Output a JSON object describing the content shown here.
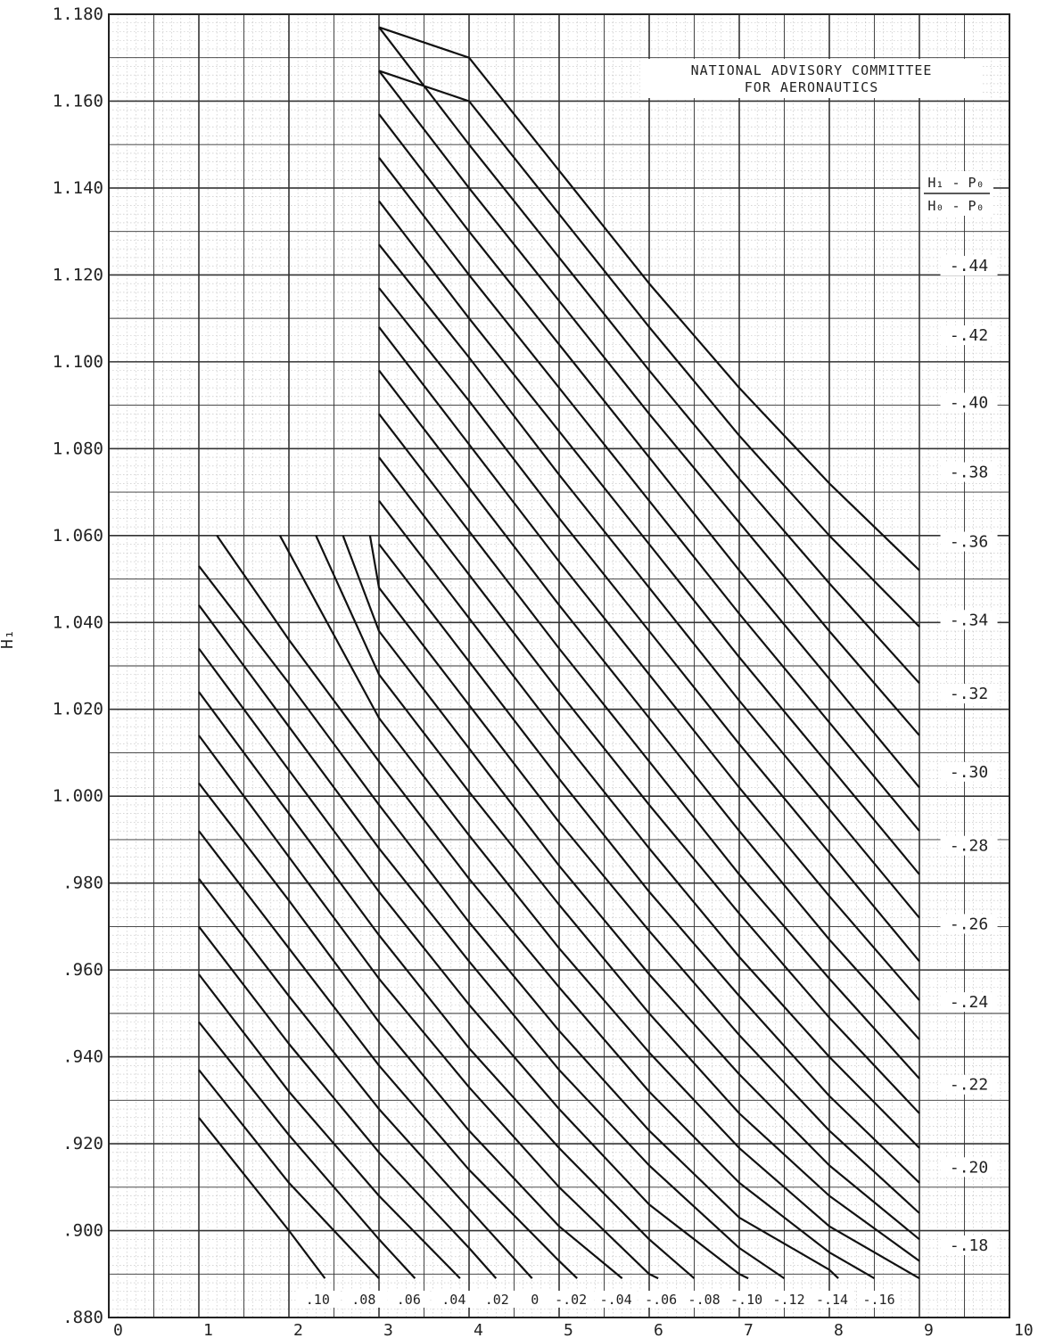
{
  "chart_data": {
    "type": "line",
    "title": "",
    "annotation": [
      "NATIONAL ADVISORY COMMITTEE",
      "FOR AERONAUTICS"
    ],
    "xlabel": "",
    "ylabel": "H₁",
    "right_axis_title": {
      "numerator": "H₁ - P₀",
      "denominator": "H₀ - P₀"
    },
    "xlim": [
      0,
      1.0
    ],
    "ylim": [
      0.88,
      1.18
    ],
    "grid": true,
    "x_ticks": [
      {
        "v": 0.0,
        "label": "0"
      },
      {
        "v": 0.1,
        "label": "1"
      },
      {
        "v": 0.2,
        "label": "2"
      },
      {
        "v": 0.3,
        "label": "3"
      },
      {
        "v": 0.4,
        "label": "4"
      },
      {
        "v": 0.5,
        "label": "5"
      },
      {
        "v": 0.6,
        "label": "6"
      },
      {
        "v": 0.7,
        "label": "7"
      },
      {
        "v": 0.8,
        "label": "8"
      },
      {
        "v": 0.9,
        "label": "9"
      },
      {
        "v": 1.0,
        "label": "10"
      }
    ],
    "y_ticks": [
      {
        "v": 1.18,
        "label": "1.180"
      },
      {
        "v": 1.16,
        "label": "1.160"
      },
      {
        "v": 1.14,
        "label": "1.140"
      },
      {
        "v": 1.12,
        "label": "1.120"
      },
      {
        "v": 1.1,
        "label": "1.100"
      },
      {
        "v": 1.08,
        "label": "1.080"
      },
      {
        "v": 1.06,
        "label": "1.060"
      },
      {
        "v": 1.04,
        "label": "1.040"
      },
      {
        "v": 1.02,
        "label": "1.020"
      },
      {
        "v": 1.0,
        "label": "1.000"
      },
      {
        "v": 0.98,
        "label": ".980"
      },
      {
        "v": 0.96,
        "label": ".960"
      },
      {
        "v": 0.94,
        "label": ".940"
      },
      {
        "v": 0.92,
        "label": ".920"
      },
      {
        "v": 0.9,
        "label": ".900"
      },
      {
        "v": 0.88,
        "label": ".880"
      }
    ],
    "right_labels": [
      {
        "y": 1.1215,
        "label": "-.44"
      },
      {
        "y": 1.1055,
        "label": "-.42"
      },
      {
        "y": 1.09,
        "label": "-.40"
      },
      {
        "y": 1.074,
        "label": "-.38"
      },
      {
        "y": 1.058,
        "label": "-.36"
      },
      {
        "y": 1.04,
        "label": "-.34"
      },
      {
        "y": 1.023,
        "label": "-.32"
      },
      {
        "y": 1.005,
        "label": "-.30"
      },
      {
        "y": 0.988,
        "label": "-.28"
      },
      {
        "y": 0.97,
        "label": "-.26"
      },
      {
        "y": 0.952,
        "label": "-.24"
      },
      {
        "y": 0.933,
        "label": "-.22"
      },
      {
        "y": 0.914,
        "label": "-.20"
      },
      {
        "y": 0.896,
        "label": "-.18"
      }
    ],
    "bottom_curve_labels": [
      {
        "x": 0.232,
        "label": ".10"
      },
      {
        "x": 0.283,
        "label": ".08"
      },
      {
        "x": 0.333,
        "label": ".06"
      },
      {
        "x": 0.383,
        "label": ".04"
      },
      {
        "x": 0.431,
        "label": ".02"
      },
      {
        "x": 0.473,
        "label": "0"
      },
      {
        "x": 0.513,
        "label": "-.02"
      },
      {
        "x": 0.563,
        "label": "-.04"
      },
      {
        "x": 0.613,
        "label": "-.06"
      },
      {
        "x": 0.661,
        "label": "-.08"
      },
      {
        "x": 0.708,
        "label": "-.10"
      },
      {
        "x": 0.755,
        "label": "-.12"
      },
      {
        "x": 0.803,
        "label": "-.14"
      },
      {
        "x": 0.855,
        "label": "-.16"
      }
    ],
    "series": [
      {
        "points": [
          [
            0.1,
            0.926
          ],
          [
            0.2,
            0.9
          ],
          [
            0.24,
            0.889
          ]
        ]
      },
      {
        "points": [
          [
            0.1,
            0.937
          ],
          [
            0.2,
            0.911
          ],
          [
            0.3,
            0.889
          ]
        ]
      },
      {
        "points": [
          [
            0.1,
            0.948
          ],
          [
            0.2,
            0.922
          ],
          [
            0.3,
            0.898
          ],
          [
            0.34,
            0.889
          ]
        ]
      },
      {
        "points": [
          [
            0.1,
            0.959
          ],
          [
            0.2,
            0.932
          ],
          [
            0.3,
            0.908
          ],
          [
            0.39,
            0.889
          ]
        ]
      },
      {
        "points": [
          [
            0.1,
            0.97
          ],
          [
            0.2,
            0.943
          ],
          [
            0.3,
            0.918
          ],
          [
            0.4,
            0.896
          ],
          [
            0.43,
            0.889
          ]
        ]
      },
      {
        "points": [
          [
            0.1,
            0.981
          ],
          [
            0.2,
            0.954
          ],
          [
            0.3,
            0.928
          ],
          [
            0.4,
            0.905
          ],
          [
            0.47,
            0.889
          ]
        ]
      },
      {
        "points": [
          [
            0.1,
            0.992
          ],
          [
            0.2,
            0.965
          ],
          [
            0.3,
            0.938
          ],
          [
            0.4,
            0.914
          ],
          [
            0.5,
            0.893
          ],
          [
            0.52,
            0.889
          ]
        ]
      },
      {
        "points": [
          [
            0.1,
            1.003
          ],
          [
            0.2,
            0.976
          ],
          [
            0.3,
            0.948
          ],
          [
            0.4,
            0.923
          ],
          [
            0.5,
            0.901
          ],
          [
            0.57,
            0.889
          ]
        ]
      },
      {
        "points": [
          [
            0.1,
            1.014
          ],
          [
            0.2,
            0.986
          ],
          [
            0.3,
            0.958
          ],
          [
            0.4,
            0.933
          ],
          [
            0.5,
            0.91
          ],
          [
            0.6,
            0.89
          ],
          [
            0.61,
            0.889
          ]
        ]
      },
      {
        "points": [
          [
            0.1,
            1.024
          ],
          [
            0.2,
            0.996
          ],
          [
            0.3,
            0.968
          ],
          [
            0.4,
            0.942
          ],
          [
            0.5,
            0.919
          ],
          [
            0.6,
            0.898
          ],
          [
            0.65,
            0.889
          ]
        ]
      },
      {
        "points": [
          [
            0.1,
            1.034
          ],
          [
            0.2,
            1.006
          ],
          [
            0.3,
            0.978
          ],
          [
            0.4,
            0.952
          ],
          [
            0.5,
            0.928
          ],
          [
            0.6,
            0.906
          ],
          [
            0.7,
            0.89
          ],
          [
            0.71,
            0.889
          ]
        ]
      },
      {
        "points": [
          [
            0.1,
            1.044
          ],
          [
            0.2,
            1.016
          ],
          [
            0.3,
            0.988
          ],
          [
            0.4,
            0.962
          ],
          [
            0.5,
            0.937
          ],
          [
            0.6,
            0.915
          ],
          [
            0.7,
            0.896
          ],
          [
            0.75,
            0.889
          ]
        ]
      },
      {
        "points": [
          [
            0.1,
            1.053
          ],
          [
            0.2,
            1.026
          ],
          [
            0.3,
            0.998
          ],
          [
            0.4,
            0.971
          ],
          [
            0.5,
            0.946
          ],
          [
            0.6,
            0.923
          ],
          [
            0.7,
            0.903
          ],
          [
            0.8,
            0.891
          ],
          [
            0.81,
            0.889
          ]
        ]
      },
      {
        "points": [
          [
            0.12,
            1.06
          ],
          [
            0.2,
            1.036
          ],
          [
            0.3,
            1.008
          ],
          [
            0.4,
            0.981
          ],
          [
            0.5,
            0.956
          ],
          [
            0.6,
            0.932
          ],
          [
            0.7,
            0.911
          ],
          [
            0.8,
            0.895
          ],
          [
            0.85,
            0.889
          ]
        ]
      },
      {
        "points": [
          [
            0.19,
            1.06
          ],
          [
            0.3,
            1.018
          ],
          [
            0.4,
            0.991
          ],
          [
            0.5,
            0.965
          ],
          [
            0.6,
            0.941
          ],
          [
            0.7,
            0.919
          ],
          [
            0.8,
            0.901
          ],
          [
            0.9,
            0.889
          ]
        ]
      },
      {
        "points": [
          [
            0.23,
            1.06
          ],
          [
            0.3,
            1.028
          ],
          [
            0.4,
            1.001
          ],
          [
            0.5,
            0.975
          ],
          [
            0.6,
            0.95
          ],
          [
            0.7,
            0.927
          ],
          [
            0.8,
            0.908
          ],
          [
            0.9,
            0.893
          ]
        ]
      },
      {
        "points": [
          [
            0.26,
            1.06
          ],
          [
            0.3,
            1.038
          ],
          [
            0.4,
            1.011
          ],
          [
            0.5,
            0.984
          ],
          [
            0.6,
            0.959
          ],
          [
            0.7,
            0.936
          ],
          [
            0.8,
            0.915
          ],
          [
            0.9,
            0.898
          ]
        ]
      },
      {
        "points": [
          [
            0.29,
            1.06
          ],
          [
            0.3,
            1.048
          ],
          [
            0.4,
            1.021
          ],
          [
            0.5,
            0.994
          ],
          [
            0.6,
            0.969
          ],
          [
            0.7,
            0.945
          ],
          [
            0.8,
            0.923
          ],
          [
            0.9,
            0.904
          ]
        ]
      },
      {
        "points": [
          [
            0.3,
            1.058
          ],
          [
            0.4,
            1.031
          ],
          [
            0.5,
            1.004
          ],
          [
            0.6,
            0.978
          ],
          [
            0.7,
            0.954
          ],
          [
            0.8,
            0.931
          ],
          [
            0.9,
            0.911
          ]
        ]
      },
      {
        "points": [
          [
            0.3,
            1.068
          ],
          [
            0.4,
            1.041
          ],
          [
            0.5,
            1.014
          ],
          [
            0.6,
            0.988
          ],
          [
            0.7,
            0.963
          ],
          [
            0.8,
            0.94
          ],
          [
            0.9,
            0.919
          ]
        ]
      },
      {
        "points": [
          [
            0.3,
            1.078
          ],
          [
            0.4,
            1.051
          ],
          [
            0.5,
            1.024
          ],
          [
            0.6,
            0.998
          ],
          [
            0.7,
            0.973
          ],
          [
            0.8,
            0.949
          ],
          [
            0.9,
            0.927
          ]
        ]
      },
      {
        "points": [
          [
            0.3,
            1.088
          ],
          [
            0.4,
            1.061
          ],
          [
            0.5,
            1.034
          ],
          [
            0.6,
            1.008
          ],
          [
            0.7,
            0.982
          ],
          [
            0.8,
            0.958
          ],
          [
            0.9,
            0.935
          ]
        ]
      },
      {
        "points": [
          [
            0.3,
            1.098
          ],
          [
            0.4,
            1.071
          ],
          [
            0.5,
            1.044
          ],
          [
            0.6,
            1.018
          ],
          [
            0.7,
            0.992
          ],
          [
            0.8,
            0.967
          ],
          [
            0.9,
            0.944
          ]
        ]
      },
      {
        "points": [
          [
            0.3,
            1.108
          ],
          [
            0.4,
            1.081
          ],
          [
            0.5,
            1.054
          ],
          [
            0.6,
            1.028
          ],
          [
            0.7,
            1.002
          ],
          [
            0.8,
            0.977
          ],
          [
            0.9,
            0.953
          ]
        ]
      },
      {
        "points": [
          [
            0.3,
            1.117
          ],
          [
            0.4,
            1.091
          ],
          [
            0.5,
            1.064
          ],
          [
            0.6,
            1.038
          ],
          [
            0.7,
            1.012
          ],
          [
            0.8,
            0.987
          ],
          [
            0.9,
            0.962
          ]
        ]
      },
      {
        "points": [
          [
            0.3,
            1.127
          ],
          [
            0.4,
            1.101
          ],
          [
            0.5,
            1.074
          ],
          [
            0.6,
            1.048
          ],
          [
            0.7,
            1.022
          ],
          [
            0.8,
            0.997
          ],
          [
            0.9,
            0.972
          ]
        ]
      },
      {
        "points": [
          [
            0.3,
            1.137
          ],
          [
            0.4,
            1.11
          ],
          [
            0.5,
            1.084
          ],
          [
            0.6,
            1.058
          ],
          [
            0.7,
            1.032
          ],
          [
            0.8,
            1.007
          ],
          [
            0.9,
            0.982
          ]
        ]
      },
      {
        "points": [
          [
            0.3,
            1.147
          ],
          [
            0.4,
            1.12
          ],
          [
            0.5,
            1.094
          ],
          [
            0.6,
            1.068
          ],
          [
            0.7,
            1.042
          ],
          [
            0.8,
            1.017
          ],
          [
            0.9,
            0.992
          ]
        ]
      },
      {
        "points": [
          [
            0.3,
            1.157
          ],
          [
            0.4,
            1.13
          ],
          [
            0.5,
            1.104
          ],
          [
            0.6,
            1.078
          ],
          [
            0.7,
            1.052
          ],
          [
            0.8,
            1.027
          ],
          [
            0.9,
            1.002
          ]
        ]
      },
      {
        "points": [
          [
            0.3,
            1.167
          ],
          [
            0.4,
            1.14
          ],
          [
            0.5,
            1.114
          ],
          [
            0.6,
            1.088
          ],
          [
            0.7,
            1.063
          ],
          [
            0.8,
            1.038
          ],
          [
            0.9,
            1.014
          ]
        ]
      },
      {
        "points": [
          [
            0.3,
            1.177
          ],
          [
            0.4,
            1.15
          ],
          [
            0.5,
            1.124
          ],
          [
            0.6,
            1.098
          ],
          [
            0.7,
            1.073
          ],
          [
            0.8,
            1.049
          ],
          [
            0.9,
            1.026
          ]
        ]
      },
      {
        "points": [
          [
            0.3,
            1.167
          ],
          [
            0.4,
            1.16
          ],
          [
            0.5,
            1.134
          ],
          [
            0.6,
            1.108
          ],
          [
            0.7,
            1.083
          ],
          [
            0.8,
            1.06
          ],
          [
            0.9,
            1.039
          ]
        ]
      },
      {
        "points": [
          [
            0.3,
            1.177
          ],
          [
            0.4,
            1.17
          ],
          [
            0.5,
            1.144
          ],
          [
            0.6,
            1.118
          ],
          [
            0.7,
            1.094
          ],
          [
            0.8,
            1.072
          ],
          [
            0.9,
            1.052
          ]
        ]
      }
    ]
  }
}
